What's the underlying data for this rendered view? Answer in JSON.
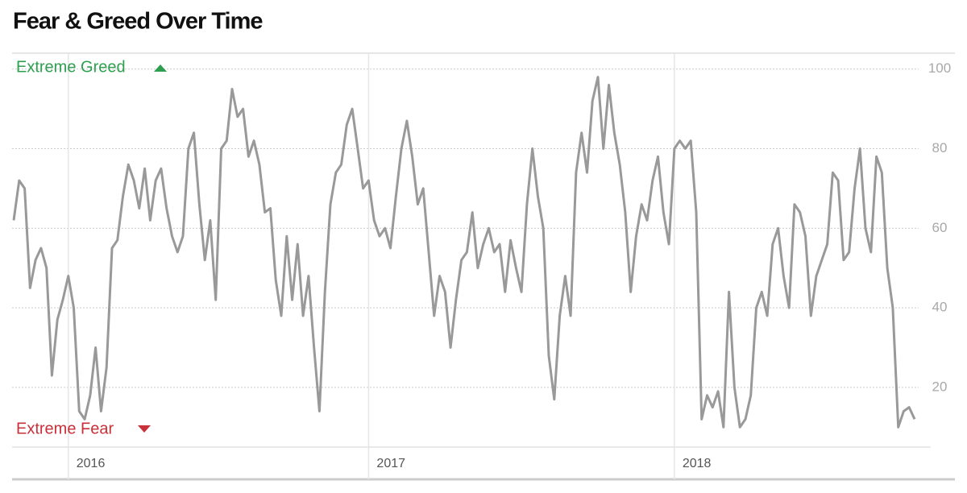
{
  "chart_data": {
    "type": "line",
    "title": "Fear & Greed Over Time",
    "annotations": {
      "top": "Extreme Greed",
      "bottom": "Extreme Fear"
    },
    "color": "#999999",
    "categories": [
      null,
      null,
      null,
      null,
      null,
      null,
      null,
      null,
      null,
      null,
      "2016",
      null,
      null,
      null,
      null,
      null,
      null,
      null,
      null,
      null,
      null,
      null,
      null,
      null,
      null,
      null,
      null,
      null,
      null,
      null,
      null,
      null,
      null,
      null,
      null,
      null,
      null,
      null,
      null,
      null,
      null,
      null,
      null,
      null,
      null,
      null,
      null,
      null,
      null,
      null,
      null,
      null,
      null,
      null,
      null,
      null,
      null,
      null,
      null,
      null,
      null,
      null,
      null,
      null,
      null,
      "2017",
      null,
      null,
      null,
      null,
      null,
      null,
      null,
      null,
      null,
      null,
      null,
      null,
      null,
      null,
      null,
      null,
      null,
      null,
      null,
      null,
      null,
      null,
      null,
      null,
      null,
      null,
      null,
      null,
      null,
      null,
      null,
      null,
      null,
      null,
      null,
      null,
      null,
      null,
      null,
      null,
      null,
      null,
      null,
      null,
      null,
      null,
      null,
      null,
      null,
      null,
      null,
      null,
      null,
      null,
      null,
      "2018",
      null,
      null,
      null,
      null,
      null,
      null,
      null,
      null,
      null,
      null,
      null,
      null,
      null,
      null,
      null,
      null,
      null,
      null,
      null,
      null,
      null,
      null,
      null,
      null,
      null,
      null,
      null,
      null,
      null,
      null,
      null,
      null,
      null,
      null,
      null,
      null,
      null,
      null,
      null,
      null,
      null,
      null,
      null,
      null
    ],
    "values": [
      62,
      72,
      70,
      45,
      52,
      55,
      50,
      23,
      37,
      42,
      48,
      40,
      14,
      12,
      18,
      30,
      14,
      25,
      55,
      57,
      68,
      76,
      72,
      65,
      75,
      62,
      72,
      75,
      65,
      58,
      54,
      58,
      80,
      84,
      66,
      52,
      62,
      42,
      80,
      82,
      95,
      88,
      90,
      78,
      82,
      76,
      64,
      65,
      47,
      38,
      58,
      42,
      56,
      38,
      48,
      30,
      14,
      44,
      66,
      74,
      76,
      86,
      90,
      80,
      70,
      72,
      62,
      58,
      60,
      55,
      68,
      80,
      87,
      78,
      66,
      70,
      54,
      38,
      48,
      44,
      30,
      42,
      52,
      54,
      64,
      50,
      56,
      60,
      54,
      56,
      44,
      57,
      50,
      44,
      66,
      80,
      68,
      60,
      28,
      17,
      38,
      48,
      38,
      74,
      84,
      74,
      92,
      98,
      80,
      96,
      84,
      76,
      64,
      44,
      58,
      66,
      62,
      72,
      78,
      64,
      56,
      80,
      82,
      80,
      82,
      64,
      12,
      18,
      15,
      19,
      10,
      44,
      20,
      10,
      12,
      18,
      40,
      44,
      38,
      56,
      60,
      48,
      40,
      66,
      64,
      58,
      38,
      48,
      52,
      56,
      74,
      72,
      52,
      54,
      70,
      80,
      60,
      54,
      78,
      74,
      50,
      40,
      10,
      14,
      15,
      12
    ],
    "ylim": [
      5,
      104
    ],
    "yticks": [
      20,
      40,
      60,
      80,
      100
    ],
    "grid": true
  }
}
